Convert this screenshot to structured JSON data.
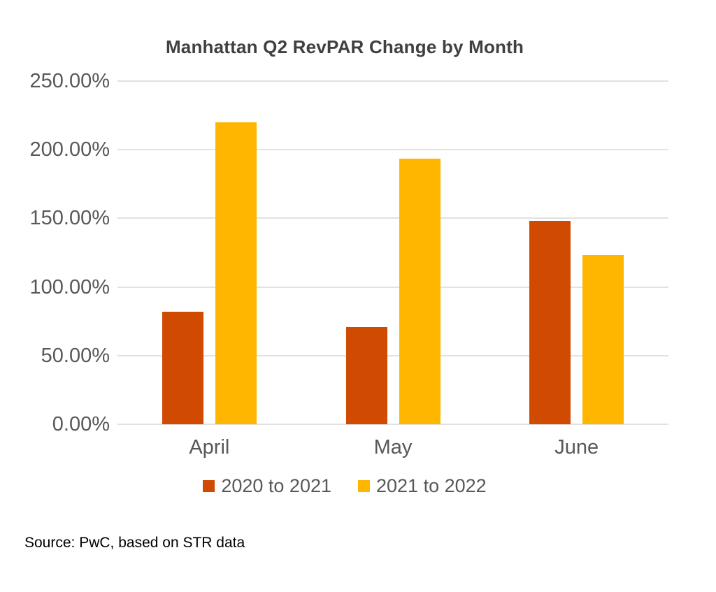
{
  "title": "Manhattan Q2 RevPAR Change by Month",
  "source_note": "Source: PwC, based on STR data",
  "chart_data": {
    "type": "bar",
    "title": "Manhattan Q2 RevPAR Change by Month",
    "categories": [
      "April",
      "May",
      "June"
    ],
    "series": [
      {
        "name": "2020 to 2021",
        "color": "#D04A02",
        "values": [
          82,
          71,
          148
        ]
      },
      {
        "name": "2021 to 2022",
        "color": "#FFB600",
        "values": [
          220,
          193.5,
          123
        ]
      }
    ],
    "xlabel": "",
    "ylabel": "",
    "ylim": [
      0,
      250
    ],
    "y_ticks": [
      {
        "value": 0,
        "label": "0.00%"
      },
      {
        "value": 50,
        "label": "50.00%"
      },
      {
        "value": 100,
        "label": "100.00%"
      },
      {
        "value": 150,
        "label": "150.00%"
      },
      {
        "value": 200,
        "label": "200.00%"
      },
      {
        "value": 250,
        "label": "250.00%"
      }
    ],
    "grid": true,
    "legend_position": "bottom",
    "value_format": "percent"
  },
  "colors": {
    "series_1": "#D04A02",
    "series_2": "#FFB600",
    "gridline": "#E2E2E2",
    "axis_text": "#58585A",
    "title_text": "#3F4043",
    "source_text": "#000000",
    "background": "#FFFFFF"
  }
}
